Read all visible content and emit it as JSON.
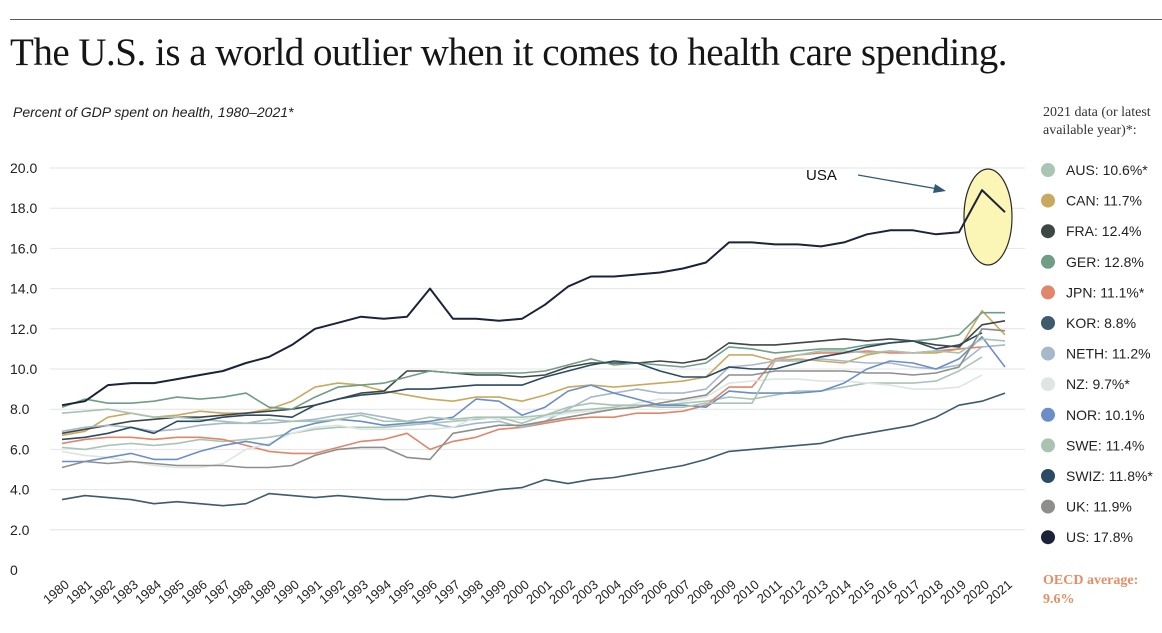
{
  "header": {
    "title": "The U.S. is a world outlier when it comes to health care spending.",
    "subtitle": "Percent of GDP spent on health, 1980–2021*",
    "legend_heading": "2021 data (or latest\navailable year)*:",
    "oecd_note": "OECD average:\n9.6%"
  },
  "colors": {
    "AUS": "#a9c5b6",
    "CAN": "#c9a95e",
    "FRA": "#3f4744",
    "GER": "#6f9e86",
    "JPN": "#e0866a",
    "KOR": "#3e5a6d",
    "NETH": "#a6b8cc",
    "NZ": "#dde6e0",
    "NOR": "#6b8ec8",
    "SWE": "#a9c3b3",
    "SWIZ": "#2b4a63",
    "UK": "#8d8f8b",
    "US": "#1a2338",
    "highlight_fill": "#fbf6b5",
    "oecd": "#e58d65",
    "arrow": "#2f5a73"
  },
  "chart_data": {
    "type": "line",
    "title": "The U.S. is a world outlier when it comes to health care spending.",
    "subtitle": "Percent of GDP spent on health, 1980–2021*",
    "xlabel": "",
    "ylabel": "",
    "x": [
      1980,
      1981,
      1982,
      1983,
      1984,
      1985,
      1986,
      1987,
      1988,
      1989,
      1990,
      1991,
      1992,
      1993,
      1994,
      1995,
      1996,
      1997,
      1998,
      1999,
      2000,
      2001,
      2002,
      2003,
      2004,
      2005,
      2006,
      2007,
      2008,
      2009,
      2010,
      2011,
      2012,
      2013,
      2014,
      2015,
      2016,
      2017,
      2018,
      2019,
      2020,
      2021
    ],
    "xticks": [
      "1980",
      "1981",
      "1982",
      "1983",
      "1984",
      "1985",
      "1986",
      "1987",
      "1988",
      "1989",
      "1990",
      "1991",
      "1992",
      "1993",
      "1994",
      "1995",
      "1996",
      "1997",
      "1998",
      "1999",
      "2000",
      "2001",
      "2002",
      "2003",
      "2004",
      "2005",
      "2006",
      "2007",
      "2008",
      "2009",
      "2010",
      "2011",
      "2012",
      "2013",
      "2014",
      "2015",
      "2016",
      "2017",
      "2018",
      "2019",
      "2020",
      "2021"
    ],
    "yticks": [
      "0",
      "2.0",
      "4.0",
      "6.0",
      "8.0",
      "10.0",
      "12.0",
      "14.0",
      "16.0",
      "18.0",
      "20.0"
    ],
    "ylim": [
      0,
      20
    ],
    "grid": true,
    "legend_position": "right",
    "series": [
      {
        "name": "AUS: 10.6%*",
        "key": "AUS",
        "values": [
          6.1,
          6.0,
          6.2,
          6.3,
          6.2,
          6.3,
          6.5,
          6.4,
          6.5,
          6.6,
          6.8,
          7.0,
          7.1,
          7.1,
          7.1,
          7.2,
          7.3,
          7.4,
          7.5,
          7.6,
          7.6,
          7.7,
          7.9,
          8.0,
          8.1,
          8.2,
          8.2,
          8.3,
          8.4,
          8.6,
          8.5,
          8.7,
          8.9,
          8.9,
          9.1,
          9.3,
          9.3,
          9.3,
          9.4,
          9.9,
          10.6,
          null
        ]
      },
      {
        "name": "CAN: 11.7%",
        "key": "CAN",
        "values": [
          6.7,
          6.9,
          7.6,
          7.8,
          7.6,
          7.7,
          7.9,
          7.8,
          7.8,
          8.0,
          8.4,
          9.1,
          9.3,
          9.2,
          8.9,
          8.7,
          8.5,
          8.4,
          8.6,
          8.6,
          8.4,
          8.7,
          9.1,
          9.2,
          9.1,
          9.2,
          9.3,
          9.4,
          9.6,
          10.7,
          10.7,
          10.4,
          10.5,
          10.4,
          10.3,
          10.7,
          10.9,
          10.8,
          10.8,
          11.0,
          12.9,
          11.7
        ]
      },
      {
        "name": "FRA: 12.4%",
        "key": "FRA",
        "values": [
          6.8,
          7.0,
          7.2,
          7.4,
          7.5,
          7.6,
          7.6,
          7.7,
          7.8,
          7.9,
          8.0,
          8.2,
          8.5,
          8.8,
          8.9,
          9.9,
          9.9,
          9.8,
          9.7,
          9.7,
          9.6,
          9.7,
          10.1,
          10.3,
          10.3,
          10.3,
          10.4,
          10.3,
          10.5,
          11.3,
          11.2,
          11.2,
          11.3,
          11.4,
          11.5,
          11.4,
          11.5,
          11.4,
          11.2,
          11.1,
          12.2,
          12.4
        ]
      },
      {
        "name": "GER: 12.8%",
        "key": "GER",
        "values": [
          8.1,
          8.5,
          8.3,
          8.3,
          8.4,
          8.6,
          8.5,
          8.6,
          8.8,
          8.1,
          8.0,
          8.6,
          9.1,
          9.2,
          9.3,
          9.6,
          9.9,
          9.8,
          9.8,
          9.8,
          9.8,
          9.9,
          10.2,
          10.5,
          10.2,
          10.3,
          10.2,
          10.1,
          10.3,
          11.1,
          11.0,
          10.8,
          10.9,
          11.0,
          11.0,
          11.2,
          11.3,
          11.4,
          11.5,
          11.7,
          12.8,
          12.8
        ]
      },
      {
        "name": "JPN: 11.1%*",
        "key": "JPN",
        "values": [
          6.3,
          6.5,
          6.6,
          6.6,
          6.5,
          6.6,
          6.6,
          6.5,
          6.2,
          5.9,
          5.8,
          5.8,
          6.1,
          6.4,
          6.5,
          6.8,
          6.0,
          6.4,
          6.6,
          7.0,
          7.1,
          7.3,
          7.5,
          7.6,
          7.6,
          7.8,
          7.8,
          7.9,
          8.2,
          9.1,
          9.1,
          10.5,
          10.7,
          10.8,
          10.8,
          10.9,
          10.8,
          10.8,
          10.9,
          11.0,
          11.1,
          null
        ]
      },
      {
        "name": "KOR: 8.8%",
        "key": "KOR",
        "values": [
          3.5,
          3.7,
          3.6,
          3.5,
          3.3,
          3.4,
          3.3,
          3.2,
          3.3,
          3.8,
          3.7,
          3.6,
          3.7,
          3.6,
          3.5,
          3.5,
          3.7,
          3.6,
          3.8,
          4.0,
          4.1,
          4.5,
          4.3,
          4.5,
          4.6,
          4.8,
          5.0,
          5.2,
          5.5,
          5.9,
          6.0,
          6.1,
          6.2,
          6.3,
          6.6,
          6.8,
          7.0,
          7.2,
          7.6,
          8.2,
          8.4,
          8.8
        ]
      },
      {
        "name": "NETH: 11.2%",
        "key": "NETH",
        "values": [
          6.9,
          7.1,
          7.2,
          7.1,
          6.9,
          7.0,
          7.2,
          7.3,
          7.3,
          7.3,
          7.4,
          7.5,
          7.7,
          7.8,
          7.6,
          7.4,
          7.3,
          7.1,
          7.3,
          7.4,
          7.1,
          7.4,
          8.0,
          8.6,
          8.8,
          9.0,
          8.8,
          8.8,
          9.0,
          10.1,
          10.2,
          10.4,
          10.4,
          10.5,
          10.4,
          10.3,
          10.3,
          10.1,
          10.0,
          10.2,
          11.1,
          11.2
        ]
      },
      {
        "name": "NZ: 9.7%*",
        "key": "NZ",
        "values": [
          5.9,
          5.7,
          5.6,
          5.4,
          5.2,
          5.1,
          5.1,
          5.3,
          6.0,
          6.3,
          6.8,
          7.1,
          7.2,
          7.0,
          7.0,
          7.0,
          7.0,
          7.1,
          7.6,
          7.5,
          7.5,
          7.6,
          7.8,
          7.9,
          8.0,
          8.3,
          8.5,
          8.4,
          8.6,
          9.3,
          9.4,
          9.5,
          9.5,
          9.4,
          9.4,
          9.3,
          9.2,
          9.0,
          9.0,
          9.1,
          9.7,
          null
        ]
      },
      {
        "name": "NOR: 10.1%",
        "key": "NOR",
        "values": [
          5.4,
          5.4,
          5.6,
          5.8,
          5.5,
          5.5,
          5.9,
          6.2,
          6.4,
          6.2,
          7.0,
          7.3,
          7.5,
          7.4,
          7.2,
          7.3,
          7.4,
          7.6,
          8.5,
          8.4,
          7.7,
          8.1,
          8.9,
          9.2,
          8.8,
          8.5,
          8.2,
          8.2,
          8.1,
          8.9,
          8.8,
          8.8,
          8.8,
          8.9,
          9.3,
          10.0,
          10.4,
          10.3,
          10.0,
          10.5,
          11.6,
          10.1
        ]
      },
      {
        "name": "SWE: 11.4%",
        "key": "SWE",
        "values": [
          7.8,
          7.9,
          8.0,
          7.8,
          7.6,
          7.6,
          7.5,
          7.4,
          7.3,
          7.5,
          7.4,
          7.4,
          7.5,
          7.7,
          7.4,
          7.4,
          7.6,
          7.5,
          7.6,
          7.6,
          7.3,
          7.7,
          8.1,
          8.3,
          8.2,
          8.2,
          8.1,
          8.1,
          8.3,
          8.3,
          8.3,
          10.4,
          10.7,
          10.9,
          10.9,
          10.8,
          10.9,
          10.8,
          10.9,
          10.8,
          11.5,
          11.4
        ]
      },
      {
        "name": "SWIZ: 11.8%*",
        "key": "SWIZ",
        "values": [
          6.5,
          6.6,
          6.8,
          7.1,
          6.8,
          7.4,
          7.4,
          7.6,
          7.7,
          7.7,
          7.6,
          8.2,
          8.5,
          8.7,
          8.8,
          9.0,
          9.0,
          9.1,
          9.2,
          9.2,
          9.2,
          9.6,
          9.9,
          10.2,
          10.4,
          10.3,
          9.9,
          9.6,
          9.6,
          10.1,
          10.0,
          10.0,
          10.3,
          10.6,
          10.8,
          11.1,
          11.3,
          11.4,
          11.0,
          11.2,
          11.8,
          null
        ]
      },
      {
        "name": "UK: 11.9%",
        "key": "UK",
        "values": [
          5.1,
          5.4,
          5.3,
          5.4,
          5.3,
          5.2,
          5.2,
          5.2,
          5.1,
          5.1,
          5.2,
          5.7,
          6.0,
          6.1,
          6.1,
          5.6,
          5.5,
          6.8,
          7.0,
          7.2,
          7.2,
          7.4,
          7.6,
          7.8,
          8.0,
          8.1,
          8.3,
          8.5,
          8.7,
          9.7,
          9.7,
          9.9,
          9.9,
          9.9,
          9.9,
          9.8,
          9.8,
          9.7,
          9.8,
          10.1,
          12.0,
          11.9
        ]
      },
      {
        "name": "US: 17.8%",
        "key": "US",
        "values": [
          8.2,
          8.4,
          9.2,
          9.3,
          9.3,
          9.5,
          9.7,
          9.9,
          10.3,
          10.6,
          11.2,
          12.0,
          12.3,
          12.6,
          12.5,
          12.6,
          14.0,
          12.5,
          12.5,
          12.4,
          12.5,
          13.2,
          14.1,
          14.6,
          14.6,
          14.7,
          14.8,
          15.0,
          15.3,
          16.3,
          16.3,
          16.2,
          16.2,
          16.1,
          16.3,
          16.7,
          16.9,
          16.9,
          16.7,
          16.8,
          18.9,
          17.8
        ]
      }
    ],
    "annotations": [
      {
        "text": "USA",
        "target_series": "US",
        "target_years": [
          2019,
          2021
        ]
      }
    ]
  }
}
